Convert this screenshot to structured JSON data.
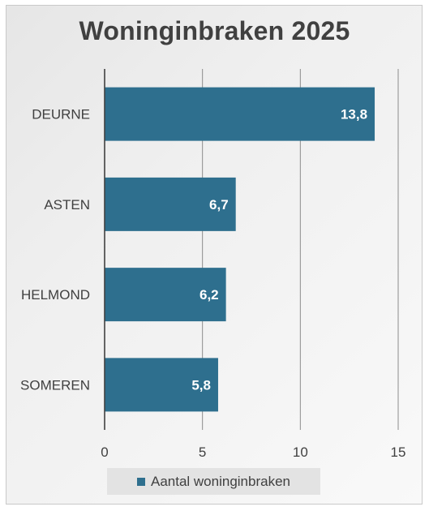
{
  "chart_data": {
    "type": "bar",
    "orientation": "horizontal",
    "title": "Woninginbraken 2025",
    "categories": [
      "DEURNE",
      "ASTEN",
      "HELMOND",
      "SOMEREN"
    ],
    "series": [
      {
        "name": "Aantal woninginbraken",
        "values": [
          13.8,
          6.7,
          6.2,
          5.8
        ],
        "value_labels": [
          "13,8",
          "6,7",
          "6,2",
          "5,8"
        ],
        "color": "#2e6f8e"
      }
    ],
    "xlim": [
      0,
      15
    ],
    "x_ticks": [
      "0",
      "5",
      "10",
      "15"
    ],
    "grid": true,
    "legend_position": "bottom"
  }
}
